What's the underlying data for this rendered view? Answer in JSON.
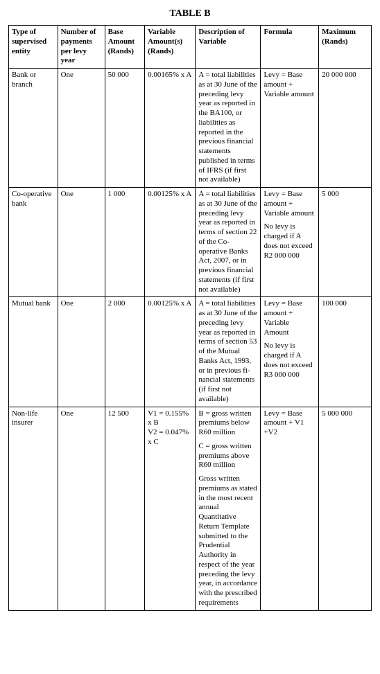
{
  "title": "TABLE B",
  "headers": {
    "c1": "Type of supervised entity",
    "c2": "Number of payments per levy year",
    "c3": "Base Amount (Rands)",
    "c4": "Variable Amount(s) (Rands)",
    "c5": "Description of Variable",
    "c6": "Formula",
    "c7": "Maximum (Rands)"
  },
  "rows": [
    {
      "type": "Bank or branch",
      "payments": "One",
      "base": "50 000",
      "variable": "0.00165% x A",
      "description": [
        "A = total liabilities as at 30 June of the preceding levy year as reported in the BA100, or liabilities as reported in the previous financial statements published in terms of IFRS (if first not available)"
      ],
      "formula": [
        "Levy = Base amount + Variable amount"
      ],
      "maximum": "20 000 000"
    },
    {
      "type": "Co-operative bank",
      "payments": "One",
      "base": "1 000",
      "variable": "0.00125% x A",
      "description": [
        "A = total liabilities as at 30 June of the preceding levy year as reported in terms of sec­tion 22 of the Co-operative Banks Act, 2007, or in previous fi­nancial state­ments (if first not available)"
      ],
      "formula": [
        "Levy = Base amount + Variable amount",
        "No levy is charged if A does not ex­ceed R2 000 000"
      ],
      "maximum": "5 000"
    },
    {
      "type": "Mutual bank",
      "payments": "One",
      "base": "2 000",
      "variable": "0.00125% x A",
      "description": [
        "A = total liabilities as at 30 June of the preceding levy year as reported in terms of sec­tion 53 of the Mutual Banks Act, 1993, or in previous fi­nancial state­ments (if first not available)"
      ],
      "formula": [
        "Levy = Base amount + Variable Amount",
        "No levy is charged if A does not ex­ceed R3 000 000"
      ],
      "maximum": "100 000"
    },
    {
      "type": "Non-life insurer",
      "payments": "One",
      "base": "12 500",
      "variable": "V1 = 0.155% x B\nV2 = 0.047% x C",
      "description": [
        "B = gross written pre­miums below R60 million",
        "C = gross written pre­miums above R60 million",
        "Gross written premiums as stated in the most recent annual Quantitative Return Template submitted to the Pruden­tial Authority in respect of the year pre­ceding the levy year, in accordance with the pre­scribed re­quirements"
      ],
      "formula": [
        "Levy = Base amount + V1 +V2"
      ],
      "maximum": "5 000 000"
    }
  ]
}
